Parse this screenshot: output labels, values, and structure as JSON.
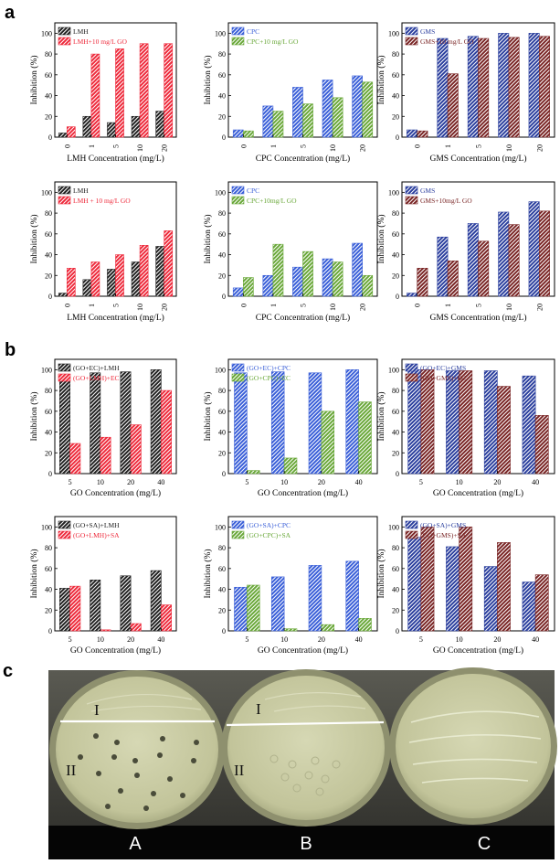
{
  "panel_labels": {
    "a": "a",
    "b": "b",
    "c": "c"
  },
  "colors": {
    "black": "#222222",
    "red": "#ee2b3c",
    "blue": "#3a5fd8",
    "green": "#6aa83a",
    "navy": "#2b3f9e",
    "maroon": "#7a2626"
  },
  "chart_data": [
    {
      "type": "bar",
      "id": "a1",
      "categories": [
        "0",
        "1",
        "5",
        "10",
        "20"
      ],
      "xlabel": "LMH Concentration (mg/L)",
      "ylabel": "Inhibition (%)",
      "ylim": [
        0,
        110
      ],
      "yticks": [
        0,
        20,
        40,
        60,
        80,
        100
      ],
      "series": [
        {
          "name": "LMH",
          "color": "black",
          "values": [
            4,
            20,
            14,
            20,
            25
          ]
        },
        {
          "name": "LMH+10 mg/L GO",
          "color": "red",
          "values": [
            10,
            80,
            85,
            90,
            90
          ]
        }
      ]
    },
    {
      "type": "bar",
      "id": "a2",
      "categories": [
        "0",
        "1",
        "5",
        "10",
        "20"
      ],
      "xlabel": "CPC Concentration (mg/L)",
      "ylabel": "Inhibition (%)",
      "ylim": [
        0,
        110
      ],
      "yticks": [
        0,
        20,
        40,
        60,
        80,
        100
      ],
      "series": [
        {
          "name": "CPC",
          "color": "blue",
          "values": [
            7,
            30,
            48,
            55,
            59
          ]
        },
        {
          "name": "CPC+10 mg/L GO",
          "color": "green",
          "values": [
            6,
            25,
            32,
            38,
            53
          ]
        }
      ]
    },
    {
      "type": "bar",
      "id": "a3",
      "categories": [
        "0",
        "1",
        "5",
        "10",
        "20"
      ],
      "xlabel": "GMS Concentration (mg/L)",
      "ylabel": "Inhibition (%)",
      "ylim": [
        0,
        110
      ],
      "yticks": [
        0,
        20,
        40,
        60,
        80,
        100
      ],
      "series": [
        {
          "name": "GMS",
          "color": "navy",
          "values": [
            7,
            95,
            97,
            100,
            100
          ]
        },
        {
          "name": "GMS+10 mg/L GO",
          "color": "maroon",
          "values": [
            6,
            61,
            95,
            96,
            97
          ]
        }
      ]
    },
    {
      "type": "bar",
      "id": "a4",
      "categories": [
        "0",
        "1",
        "5",
        "10",
        "20"
      ],
      "xlabel": "LMH Concentration (mg/L)",
      "ylabel": "Inhibition (%)",
      "ylim": [
        0,
        110
      ],
      "yticks": [
        0,
        20,
        40,
        60,
        80,
        100
      ],
      "series": [
        {
          "name": "LMH",
          "color": "black",
          "values": [
            3,
            16,
            26,
            33,
            48
          ]
        },
        {
          "name": "LMH + 10 mg/L GO",
          "color": "red",
          "values": [
            27,
            33,
            40,
            49,
            63
          ]
        }
      ]
    },
    {
      "type": "bar",
      "id": "a5",
      "categories": [
        "0",
        "1",
        "5",
        "10",
        "20"
      ],
      "xlabel": "CPC Concentration (mg/L)",
      "ylabel": "Inhibition (%)",
      "ylim": [
        0,
        110
      ],
      "yticks": [
        0,
        20,
        40,
        60,
        80,
        100
      ],
      "series": [
        {
          "name": "CPC",
          "color": "blue",
          "values": [
            8,
            20,
            28,
            36,
            51
          ]
        },
        {
          "name": "CPC+10mg/L GO",
          "color": "green",
          "values": [
            18,
            50,
            43,
            33,
            20
          ]
        }
      ]
    },
    {
      "type": "bar",
      "id": "a6",
      "categories": [
        "0",
        "1",
        "5",
        "10",
        "20"
      ],
      "xlabel": "GMS Concentration (mg/L)",
      "ylabel": "Inhibition (%)",
      "ylim": [
        0,
        110
      ],
      "yticks": [
        0,
        20,
        40,
        60,
        80,
        100
      ],
      "series": [
        {
          "name": "GMS",
          "color": "navy",
          "values": [
            3,
            57,
            70,
            81,
            91
          ]
        },
        {
          "name": "GMS+10mg/L GO",
          "color": "maroon",
          "values": [
            27,
            34,
            53,
            69,
            82
          ]
        }
      ]
    },
    {
      "type": "bar",
      "id": "b1",
      "categories": [
        "5",
        "10",
        "20",
        "40"
      ],
      "xlabel": "GO Concentration (mg/L)",
      "ylabel": "Inhibition (%)",
      "ylim": [
        0,
        110
      ],
      "yticks": [
        0,
        20,
        40,
        60,
        80,
        100
      ],
      "series": [
        {
          "name": "(GO+EC)+LMH",
          "color": "black",
          "values": [
            92,
            97,
            98,
            100
          ]
        },
        {
          "name": "(GO+LMH)+EC",
          "color": "red",
          "values": [
            29,
            35,
            47,
            80
          ]
        }
      ]
    },
    {
      "type": "bar",
      "id": "b2",
      "categories": [
        "5",
        "10",
        "20",
        "40"
      ],
      "xlabel": "GO Concentration (mg/L)",
      "ylabel": "Inhibition (%)",
      "ylim": [
        0,
        110
      ],
      "yticks": [
        0,
        20,
        40,
        60,
        80,
        100
      ],
      "series": [
        {
          "name": "(GO+EC)+CPC",
          "color": "blue",
          "values": [
            97,
            98,
            97,
            100
          ]
        },
        {
          "name": "(GO+CPC)+EC",
          "color": "green",
          "values": [
            3,
            15,
            60,
            69
          ]
        }
      ]
    },
    {
      "type": "bar",
      "id": "b3",
      "categories": [
        "5",
        "10",
        "20",
        "40"
      ],
      "xlabel": "GO Concentration (mg/L)",
      "ylabel": "Inhibition (%)",
      "ylim": [
        0,
        110
      ],
      "yticks": [
        0,
        20,
        40,
        60,
        80,
        100
      ],
      "series": [
        {
          "name": "(GO+EC)+GMS",
          "color": "navy",
          "values": [
            100,
            99,
            99,
            94
          ]
        },
        {
          "name": "(GO+GMS)+EC",
          "color": "maroon",
          "values": [
            100,
            99,
            84,
            56
          ]
        }
      ]
    },
    {
      "type": "bar",
      "id": "b4",
      "categories": [
        "5",
        "10",
        "20",
        "40"
      ],
      "xlabel": "GO Concentration (mg/L)",
      "ylabel": "Inhibition (%)",
      "ylim": [
        0,
        110
      ],
      "yticks": [
        0,
        20,
        40,
        60,
        80,
        100
      ],
      "series": [
        {
          "name": "(GO+SA)+LMH",
          "color": "black",
          "values": [
            41,
            49,
            53,
            58
          ]
        },
        {
          "name": "(GO+LMH)+SA",
          "color": "red",
          "values": [
            43,
            1,
            7,
            25
          ]
        }
      ]
    },
    {
      "type": "bar",
      "id": "b5",
      "categories": [
        "5",
        "10",
        "20",
        "40"
      ],
      "xlabel": "GO Concentration (mg/L)",
      "ylabel": "Inhibition (%)",
      "ylim": [
        0,
        110
      ],
      "yticks": [
        0,
        20,
        40,
        60,
        80,
        100
      ],
      "series": [
        {
          "name": "(GO+SA)+CPC",
          "color": "blue",
          "values": [
            42,
            52,
            63,
            67
          ]
        },
        {
          "name": "(GO+CPC)+SA",
          "color": "green",
          "values": [
            44,
            2,
            6,
            12
          ]
        }
      ]
    },
    {
      "type": "bar",
      "id": "b6",
      "categories": [
        "5",
        "10",
        "20",
        "40"
      ],
      "xlabel": "GO Concentration (mg/L)",
      "ylabel": "Inhibition (%)",
      "ylim": [
        0,
        110
      ],
      "yticks": [
        0,
        20,
        40,
        60,
        80,
        100
      ],
      "series": [
        {
          "name": "(GO+SA)+GMS",
          "color": "navy",
          "values": [
            90,
            81,
            62,
            47
          ]
        },
        {
          "name": "(GO+GMS)+SA",
          "color": "maroon",
          "values": [
            100,
            100,
            85,
            54
          ]
        }
      ]
    }
  ],
  "photo": {
    "zone_top": "I",
    "zone_bottom": "II",
    "plate_labels": [
      "A",
      "B",
      "C"
    ]
  }
}
